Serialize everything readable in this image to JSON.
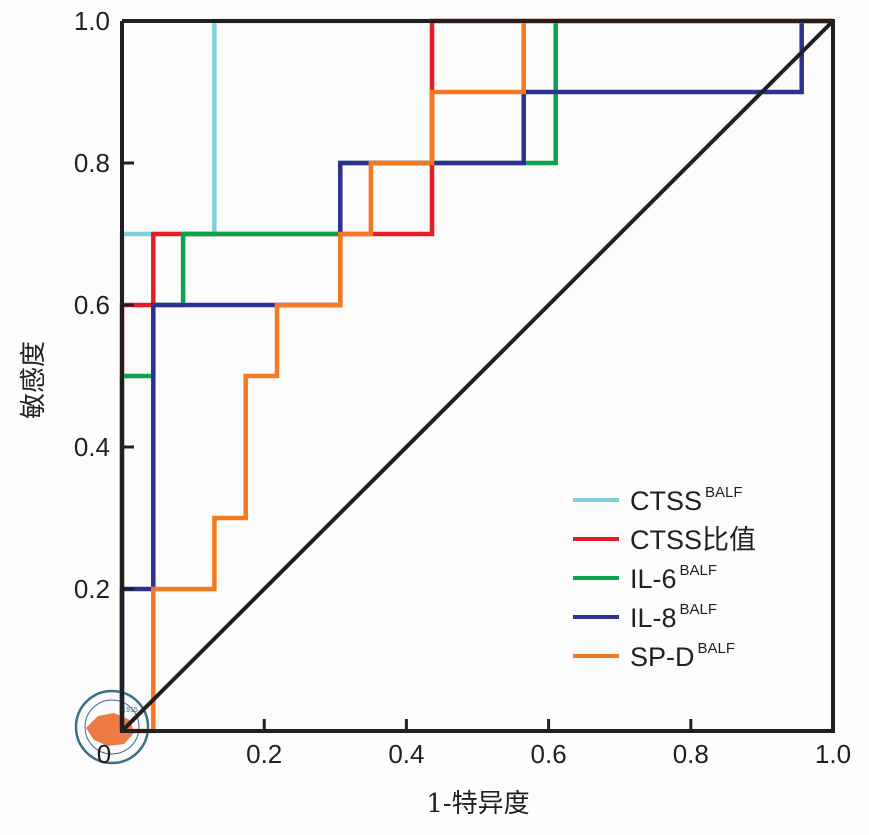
{
  "chart_data": {
    "type": "line",
    "title": "",
    "xlabel": "1-特异度",
    "ylabel": "敏感度",
    "xlim": [
      0,
      1.0
    ],
    "ylim": [
      0,
      1.0
    ],
    "xticks": [
      "0",
      "0.2",
      "0.4",
      "0.6",
      "0.8",
      "1.0"
    ],
    "xtick_values": [
      0,
      0.2,
      0.4,
      0.6,
      0.8,
      1.0
    ],
    "yticks": [
      "0.2",
      "0.4",
      "0.6",
      "0.8",
      "1.0"
    ],
    "ytick_values": [
      0.2,
      0.4,
      0.6,
      0.8,
      1.0
    ],
    "grid": false,
    "legend_position": "bottom-right",
    "reference_line": {
      "name": "diagonal",
      "x": [
        0,
        1
      ],
      "y": [
        0,
        1
      ],
      "color": "#231f20"
    },
    "series": [
      {
        "name": "CTSS",
        "sup": "BALF",
        "color": "#7fd0dc",
        "x": [
          0,
          0,
          0.13,
          0.13,
          1.0
        ],
        "y": [
          0,
          0.7,
          0.7,
          1.0,
          1.0
        ]
      },
      {
        "name": "CTSS比值",
        "sup": "",
        "color": "#e41e26",
        "x": [
          0,
          0,
          0.044,
          0.044,
          0.436,
          0.436,
          1.0
        ],
        "y": [
          0,
          0.6,
          0.6,
          0.7,
          0.7,
          1.0,
          1.0
        ]
      },
      {
        "name": "IL-6",
        "sup": "BALF",
        "color": "#0aa450",
        "x": [
          0,
          0,
          0.044,
          0.044,
          0.086,
          0.086,
          0.307,
          0.307,
          0.61,
          0.61,
          1.0
        ],
        "y": [
          0,
          0.5,
          0.5,
          0.6,
          0.6,
          0.7,
          0.7,
          0.8,
          0.8,
          1.0,
          1.0
        ]
      },
      {
        "name": "IL-8",
        "sup": "BALF",
        "color": "#2e3192",
        "x": [
          0,
          0,
          0.044,
          0.044,
          0.307,
          0.307,
          0.565,
          0.565,
          0.956,
          0.956,
          1.0
        ],
        "y": [
          0,
          0.2,
          0.2,
          0.6,
          0.6,
          0.8,
          0.8,
          0.9,
          0.9,
          1.0,
          1.0
        ]
      },
      {
        "name": "SP-D",
        "sup": "BALF",
        "color": "#f47920",
        "x": [
          0,
          0.044,
          0.044,
          0.13,
          0.13,
          0.174,
          0.174,
          0.218,
          0.218,
          0.307,
          0.307,
          0.35,
          0.35,
          0.436,
          0.436,
          0.565,
          0.565,
          1.0
        ],
        "y": [
          0,
          0,
          0.2,
          0.2,
          0.3,
          0.3,
          0.5,
          0.5,
          0.6,
          0.6,
          0.7,
          0.7,
          0.8,
          0.8,
          0.9,
          0.9,
          1.0,
          1.0
        ]
      }
    ]
  },
  "watermark": {
    "label": "CHINESE MEDICAL ASSOCIATION",
    "year": "1915"
  }
}
